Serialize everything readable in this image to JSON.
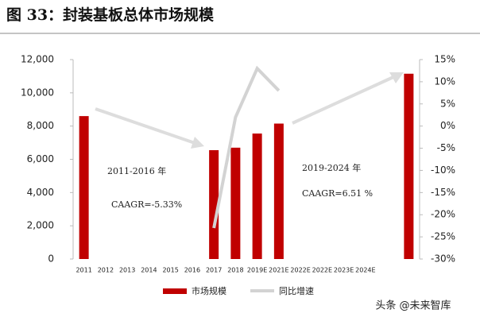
{
  "chart_data": {
    "type": "bar_line",
    "title": "图 33：封装基板总体市场规模",
    "categories": [
      "2011",
      "2012",
      "2013",
      "2014",
      "2015",
      "2016",
      "2017",
      "2018",
      "2019E",
      "2021E",
      "2022E",
      "2022E",
      "2023E",
      "2024E",
      null,
      null
    ],
    "series": [
      {
        "name": "市场规模",
        "color": "#c00000",
        "type": "bar",
        "values": [
          8600,
          null,
          null,
          null,
          null,
          null,
          6550,
          6700,
          7550,
          8150,
          null,
          null,
          null,
          null,
          null,
          11150
        ]
      },
      {
        "name": "同比增速",
        "color": "#d3d3d3",
        "type": "line",
        "axis": "y2",
        "values": [
          null,
          null,
          null,
          null,
          null,
          null,
          -23,
          2,
          13,
          8,
          null,
          null,
          null,
          null,
          null,
          null
        ]
      }
    ],
    "ylim": [
      0,
      12000
    ],
    "yticks": [
      0,
      {
        "value": 2000,
        "label": "2,000"
      },
      {
        "value": 4000,
        "label": "4,000"
      },
      {
        "value": 6000,
        "label": "6,000"
      },
      {
        "value": 8000,
        "label": "8,000"
      },
      {
        "value": 10000,
        "label": "10,000"
      },
      {
        "value": 12000,
        "label": "12,000"
      }
    ],
    "y2lim": [
      -30,
      15
    ],
    "y2ticks": [
      {
        "value": -30,
        "label": "-30%"
      },
      {
        "value": -25,
        "label": "-25%"
      },
      {
        "value": -20,
        "label": "-20%"
      },
      {
        "value": -15,
        "label": "-15%"
      },
      {
        "value": -10,
        "label": "-10%"
      },
      {
        "value": -5,
        "label": "-5%"
      },
      {
        "value": 0,
        "label": "0%"
      },
      {
        "value": 5,
        "label": "5%"
      },
      {
        "value": 10,
        "label": "10%"
      },
      {
        "value": 15,
        "label": "15%"
      }
    ],
    "annotations": [
      "2011-2016 年",
      "CAAGR=-5.33%",
      "2019-2024 年",
      "CAAGR=6.51 %"
    ],
    "watermark": "头条 @未来智库",
    "grid": false
  }
}
